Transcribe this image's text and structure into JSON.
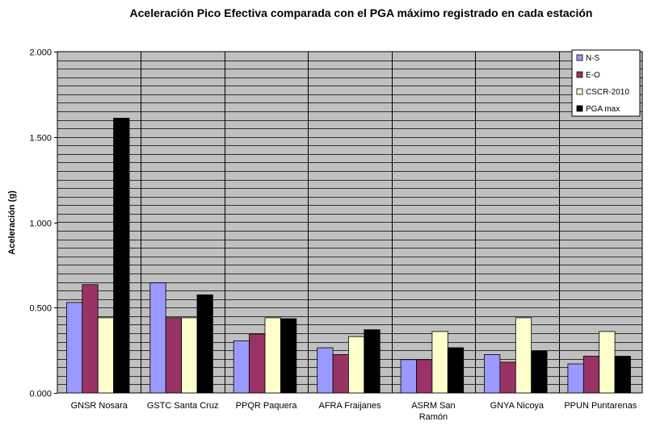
{
  "chart_data": {
    "type": "bar",
    "title": "Aceleración Pico Efectiva comparada con el PGA máximo registrado en cada estación",
    "ylabel": "Aceleración (g)",
    "xlabel": "",
    "ylim": [
      0,
      2.0
    ],
    "yticks": [
      0,
      0.5,
      1.0,
      1.5,
      2.0
    ],
    "ytick_labels": [
      "0.000",
      "0.500",
      "1.000",
      "1.500",
      "2.000"
    ],
    "grid": true,
    "legend_position": "top-right",
    "categories": [
      [
        "GNSR Nosara"
      ],
      [
        "GSTC Santa Cruz"
      ],
      [
        "PPQR Paquera"
      ],
      [
        "AFRA  Fraijanes"
      ],
      [
        "ASRM  San",
        "Ramón"
      ],
      [
        "GNYA Nicoya"
      ],
      [
        "PPUN Puntarenas"
      ]
    ],
    "series": [
      {
        "name": "N-S",
        "color": "#9999ff",
        "values": [
          0.53,
          0.645,
          0.305,
          0.265,
          0.195,
          0.225,
          0.17
        ]
      },
      {
        "name": "E-O",
        "color": "#993366",
        "values": [
          0.635,
          0.44,
          0.345,
          0.225,
          0.195,
          0.18,
          0.215
        ]
      },
      {
        "name": "CSCR-2010",
        "color": "#ffffcc",
        "values": [
          0.44,
          0.44,
          0.44,
          0.33,
          0.36,
          0.44,
          0.36
        ]
      },
      {
        "name": "PGA max",
        "color": "#000000",
        "values": [
          1.61,
          0.575,
          0.435,
          0.37,
          0.265,
          0.245,
          0.215
        ]
      }
    ],
    "plot_background": "#c0c0c0"
  }
}
